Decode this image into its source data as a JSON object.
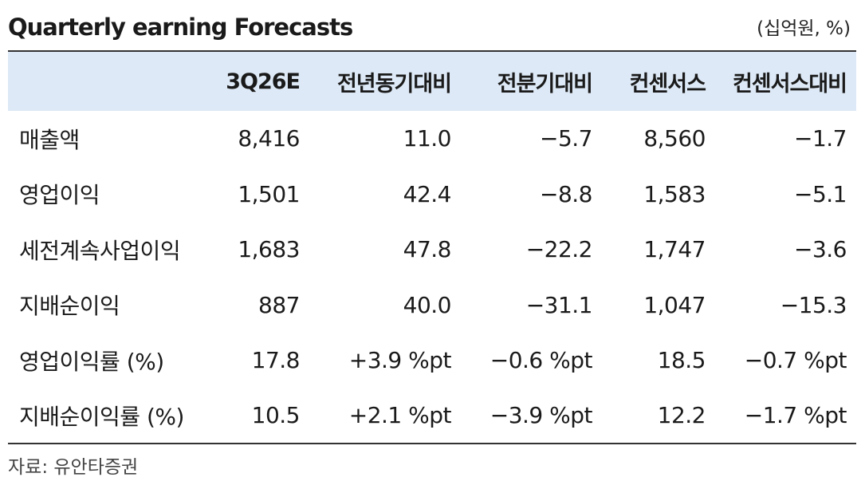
{
  "header": {
    "title": "Quarterly earning Forecasts",
    "unit": "(십억원, %)"
  },
  "table": {
    "columns": [
      "",
      "3Q26E",
      "전년동기대비",
      "전분기대비",
      "컨센서스",
      "컨센서스대비"
    ],
    "rows": [
      [
        "매출액",
        "8,416",
        "11.0",
        "−5.7",
        "8,560",
        "−1.7"
      ],
      [
        "영업이익",
        "1,501",
        "42.4",
        "−8.8",
        "1,583",
        "−5.1"
      ],
      [
        "세전계속사업이익",
        "1,683",
        "47.8",
        "−22.2",
        "1,747",
        "−3.6"
      ],
      [
        "지배순이익",
        "887",
        "40.0",
        "−31.1",
        "1,047",
        "−15.3"
      ],
      [
        "영업이익률 (%)",
        "17.8",
        "+3.9 %pt",
        "−0.6 %pt",
        "18.5",
        "−0.7 %pt"
      ],
      [
        "지배순이익률 (%)",
        "10.5",
        "+2.1 %pt",
        "−3.9 %pt",
        "12.2",
        "−1.7 %pt"
      ]
    ]
  },
  "footer": {
    "source": "자료: 유안타증권"
  },
  "colors": {
    "header_bg": "#dde9f6",
    "rule": "#333333"
  }
}
